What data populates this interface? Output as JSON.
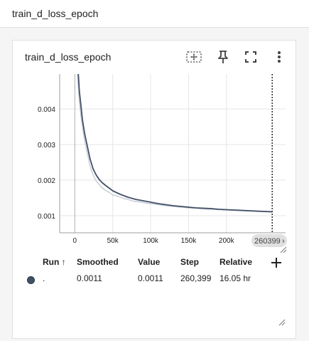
{
  "header": {
    "title": "train_d_loss_epoch"
  },
  "card": {
    "title": "train_d_loss_epoch",
    "toolbar": {
      "fit_icon": "fit-domain-icon",
      "pin_icon": "pin-icon",
      "fullscreen_icon": "fullscreen-icon",
      "menu_icon": "more-vert-icon"
    },
    "step_badge": "260399",
    "step_badge_arrow": "›"
  },
  "legend": {
    "headers": {
      "run": "Run",
      "sort_arrow": "↑",
      "smoothed": "Smoothed",
      "value": "Value",
      "step": "Step",
      "relative": "Relative"
    },
    "rows": [
      {
        "run": ".",
        "smoothed": "0.0011",
        "value": "0.0011",
        "step": "260,399",
        "relative": "16.05 hr",
        "color": "#425066"
      }
    ],
    "add_icon": "add-icon"
  },
  "chart_data": {
    "type": "line",
    "x_ticks": [
      0,
      50000,
      100000,
      150000,
      200000
    ],
    "x_tick_labels": [
      "0",
      "50k",
      "100k",
      "150k",
      "200k"
    ],
    "y_ticks": [
      0.001,
      0.002,
      0.003,
      0.004
    ],
    "y_tick_labels": [
      "0.001",
      "0.002",
      "0.003",
      "0.004"
    ],
    "xlim": [
      -20000,
      278000
    ],
    "ylim": [
      0.00052,
      0.00498
    ],
    "grid": true,
    "marker_x": 260399,
    "series": [
      {
        "role": "raw",
        "color": "#c5ccd6",
        "x": [
          2000,
          4000,
          6000,
          8000,
          10000,
          13000,
          16000,
          20000,
          24000,
          28000,
          32000,
          36000,
          40000,
          45000,
          50000,
          55000,
          60000,
          65000,
          70000,
          75000,
          80000,
          85000,
          90000,
          95000,
          100000,
          110000,
          120000,
          130000,
          140000,
          150000,
          160000,
          170000,
          180000,
          190000,
          200000,
          210000,
          220000,
          230000,
          240000,
          250000,
          260399
        ],
        "y": [
          0.0058,
          0.0048,
          0.0042,
          0.0038,
          0.0035,
          0.0031,
          0.0028,
          0.0024,
          0.00215,
          0.00198,
          0.00188,
          0.00178,
          0.00172,
          0.00166,
          0.00158,
          0.00156,
          0.00152,
          0.00148,
          0.00146,
          0.00142,
          0.0014,
          0.00139,
          0.00137,
          0.00135,
          0.00134,
          0.00131,
          0.00128,
          0.00126,
          0.00124,
          0.00122,
          0.00121,
          0.00119,
          0.00118,
          0.00117,
          0.00116,
          0.00115,
          0.00114,
          0.00113,
          0.00112,
          0.00111,
          0.00111
        ]
      },
      {
        "role": "smoothed",
        "color": "#425066",
        "x": [
          2000,
          4000,
          6000,
          8000,
          10000,
          13000,
          16000,
          20000,
          24000,
          28000,
          32000,
          36000,
          40000,
          45000,
          50000,
          55000,
          60000,
          65000,
          70000,
          75000,
          80000,
          85000,
          90000,
          95000,
          100000,
          110000,
          120000,
          130000,
          140000,
          150000,
          160000,
          170000,
          180000,
          190000,
          200000,
          210000,
          220000,
          230000,
          240000,
          250000,
          260399
        ],
        "y": [
          0.0062,
          0.0052,
          0.0045,
          0.0041,
          0.0037,
          0.0033,
          0.003,
          0.0026,
          0.00232,
          0.00215,
          0.00202,
          0.00193,
          0.00186,
          0.00178,
          0.0017,
          0.00165,
          0.0016,
          0.00156,
          0.00152,
          0.00149,
          0.00146,
          0.00144,
          0.00142,
          0.0014,
          0.00138,
          0.00134,
          0.00131,
          0.00128,
          0.00126,
          0.00124,
          0.00122,
          0.00121,
          0.0012,
          0.00118,
          0.00117,
          0.00116,
          0.00115,
          0.00114,
          0.00113,
          0.00112,
          0.00111
        ]
      }
    ]
  }
}
